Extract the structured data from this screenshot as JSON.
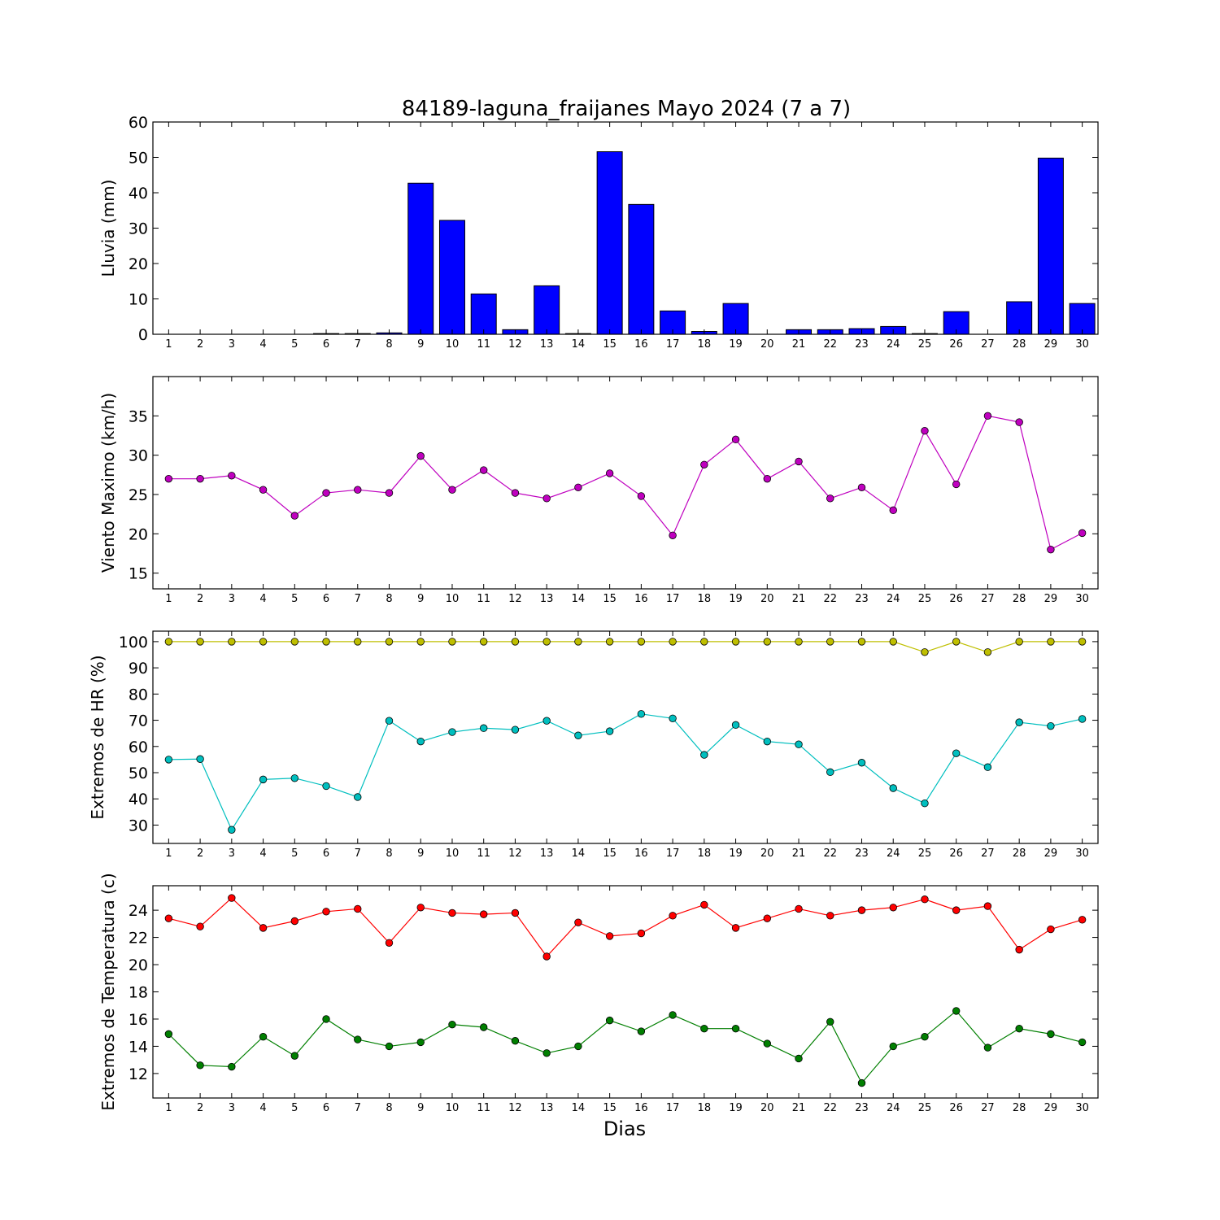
{
  "figure": {
    "title": "84189-laguna_fraijanes Mayo 2024  (7 a 7)",
    "xlabel": "Dias"
  },
  "chart_data": [
    {
      "type": "bar",
      "ylabel": "Lluvia (mm)",
      "categories": [
        "1",
        "2",
        "3",
        "4",
        "5",
        "6",
        "7",
        "8",
        "9",
        "10",
        "11",
        "12",
        "13",
        "14",
        "15",
        "16",
        "17",
        "18",
        "19",
        "20",
        "21",
        "22",
        "23",
        "24",
        "25",
        "26",
        "27",
        "28",
        "29",
        "30"
      ],
      "ylim": [
        0,
        60
      ],
      "yticks": [
        0,
        10,
        20,
        30,
        40,
        50,
        60
      ],
      "grid": false,
      "series": [
        {
          "color": "#0000ff",
          "values": [
            0,
            0,
            0,
            0,
            0,
            0.2,
            0.2,
            0.4,
            42.7,
            32.2,
            11.4,
            1.3,
            13.7,
            0.2,
            51.6,
            36.7,
            6.6,
            0.8,
            8.7,
            0,
            1.3,
            1.3,
            1.6,
            2.2,
            0.2,
            6.4,
            0,
            9.2,
            49.8,
            8.7
          ]
        }
      ]
    },
    {
      "type": "line",
      "ylabel": "Viento Maximo (km/h)",
      "categories": [
        "1",
        "2",
        "3",
        "4",
        "5",
        "6",
        "7",
        "8",
        "9",
        "10",
        "11",
        "12",
        "13",
        "14",
        "15",
        "16",
        "17",
        "18",
        "19",
        "20",
        "21",
        "22",
        "23",
        "24",
        "25",
        "26",
        "27",
        "28",
        "29",
        "30"
      ],
      "ylim": [
        13,
        40
      ],
      "yticks": [
        15,
        20,
        25,
        30,
        35
      ],
      "grid": false,
      "series": [
        {
          "color": "#bf00bf",
          "values": [
            27.0,
            27.0,
            27.4,
            25.6,
            22.3,
            25.2,
            25.6,
            25.2,
            29.9,
            25.6,
            28.1,
            25.2,
            24.5,
            25.9,
            27.7,
            24.8,
            19.8,
            28.8,
            32.0,
            27.0,
            29.2,
            24.5,
            25.9,
            23.0,
            33.1,
            26.3,
            35.0,
            34.2,
            18.0,
            20.1
          ]
        }
      ]
    },
    {
      "type": "line",
      "ylabel": "Extremos de HR (%)",
      "categories": [
        "1",
        "2",
        "3",
        "4",
        "5",
        "6",
        "7",
        "8",
        "9",
        "10",
        "11",
        "12",
        "13",
        "14",
        "15",
        "16",
        "17",
        "18",
        "19",
        "20",
        "21",
        "22",
        "23",
        "24",
        "25",
        "26",
        "27",
        "28",
        "29",
        "30"
      ],
      "ylim": [
        23,
        104
      ],
      "yticks": [
        30,
        40,
        50,
        60,
        70,
        80,
        90,
        100
      ],
      "grid": false,
      "series": [
        {
          "color": "#bfbf00",
          "values": [
            100,
            100,
            100,
            100,
            100,
            100,
            100,
            100,
            100,
            100,
            100,
            100,
            100,
            100,
            100,
            100,
            100,
            100,
            100,
            100,
            100,
            100,
            100,
            100,
            96,
            100,
            96,
            100,
            100,
            100
          ]
        },
        {
          "color": "#00bfbf",
          "values": [
            55,
            55.2,
            28.2,
            47.4,
            47.9,
            44.9,
            40.7,
            69.8,
            61.9,
            65.5,
            67.0,
            66.4,
            69.8,
            64.2,
            65.8,
            72.4,
            70.7,
            56.8,
            68.2,
            61.9,
            60.8,
            50.2,
            53.8,
            44.1,
            38.3,
            57.4,
            52.1,
            69.2,
            67.8,
            70.5
          ]
        }
      ]
    },
    {
      "type": "line",
      "ylabel": "Extremos de Temperatura (c)",
      "categories": [
        "1",
        "2",
        "3",
        "4",
        "5",
        "6",
        "7",
        "8",
        "9",
        "10",
        "11",
        "12",
        "13",
        "14",
        "15",
        "16",
        "17",
        "18",
        "19",
        "20",
        "21",
        "22",
        "23",
        "24",
        "25",
        "26",
        "27",
        "28",
        "29",
        "30"
      ],
      "ylim": [
        10.2,
        25.8
      ],
      "yticks": [
        12,
        14,
        16,
        18,
        20,
        22,
        24
      ],
      "grid": false,
      "series": [
        {
          "color": "#ff0000",
          "values": [
            23.4,
            22.8,
            24.9,
            22.7,
            23.2,
            23.9,
            24.1,
            21.6,
            24.2,
            23.8,
            23.7,
            23.8,
            20.6,
            23.1,
            22.1,
            22.3,
            23.6,
            24.4,
            22.7,
            23.4,
            24.1,
            23.6,
            24.0,
            24.2,
            24.8,
            24.0,
            24.3,
            21.1,
            22.6,
            23.3
          ]
        },
        {
          "color": "#007f00",
          "values": [
            14.9,
            12.6,
            12.5,
            14.7,
            13.3,
            16.0,
            14.5,
            14.0,
            14.3,
            15.6,
            15.4,
            14.4,
            13.5,
            14.0,
            15.9,
            15.1,
            16.3,
            15.3,
            15.3,
            14.2,
            13.1,
            15.8,
            11.3,
            14.0,
            14.7,
            16.6,
            13.9,
            15.3,
            14.9,
            14.3
          ]
        }
      ]
    }
  ]
}
